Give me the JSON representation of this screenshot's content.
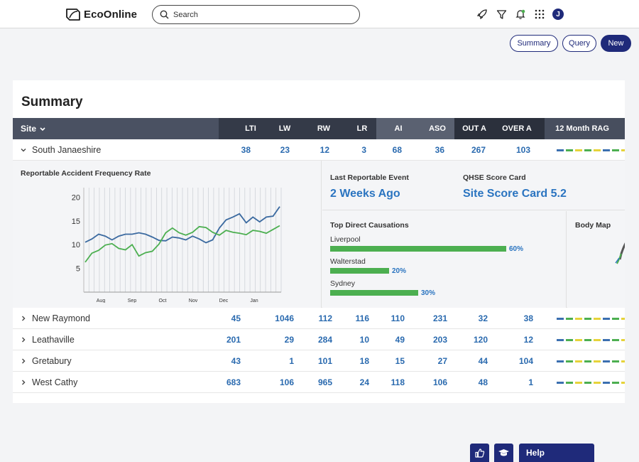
{
  "header": {
    "logo_text": "EcoOnline",
    "search_placeholder": "Search",
    "avatar_initial": "J",
    "icons": [
      "rocket-icon",
      "filter-icon",
      "bell-icon",
      "apps-grid-icon"
    ]
  },
  "actions": {
    "summary": "Summary",
    "query": "Query",
    "new": "New"
  },
  "panel": {
    "title": "Summary",
    "columns": {
      "site": "Site",
      "metrics": [
        "LTI",
        "LW",
        "RW",
        "LR",
        "AI",
        "ASO",
        "OUT A",
        "OVER A"
      ],
      "rag": "12 Month RAG"
    },
    "rows": [
      {
        "name": "South Janaeshire",
        "values": [
          "38",
          "23",
          "12",
          "3",
          "68",
          "36",
          "267",
          "103"
        ],
        "expanded": true
      },
      {
        "name": "New Raymond",
        "values": [
          "45",
          "1046",
          "112",
          "116",
          "110",
          "231",
          "32",
          "38"
        ]
      },
      {
        "name": "Leathaville",
        "values": [
          "201",
          "29",
          "284",
          "10",
          "49",
          "203",
          "120",
          "12"
        ]
      },
      {
        "name": "Gretabury",
        "values": [
          "43",
          "1",
          "101",
          "18",
          "15",
          "27",
          "44",
          "104"
        ]
      },
      {
        "name": "West Cathy",
        "values": [
          "683",
          "106",
          "965",
          "24",
          "118",
          "106",
          "48",
          "1"
        ]
      }
    ],
    "rag_colors": [
      "#3b6fb0",
      "#4caf50",
      "#e6d33a",
      "#4caf50",
      "#e6d33a",
      "#3b6fb0",
      "#4caf50",
      "#e6d33a"
    ]
  },
  "detail": {
    "chart_title": "Reportable Accident Frequency Rate",
    "last_event_label": "Last Reportable Event",
    "last_event_value": "2 Weeks Ago",
    "score_label": "QHSE Score Card",
    "score_value": "Site Score Card 5.2",
    "causations_title": "Top Direct Causations",
    "causations": [
      {
        "name": "Liverpool",
        "pct": "60%",
        "fraction": 0.6
      },
      {
        "name": "Walterstad",
        "pct": "20%",
        "fraction": 0.2
      },
      {
        "name": "Sydney",
        "pct": "30%",
        "fraction": 0.3
      }
    ],
    "body_map_title": "Body Map"
  },
  "chart_data": {
    "type": "line",
    "title": "Reportable Accident Frequency Rate",
    "x_tick_labels": [
      "Aug",
      "Sep",
      "Oct",
      "Nov",
      "Dec",
      "Jan"
    ],
    "y_ticks": [
      5,
      10,
      15,
      20
    ],
    "ylim": [
      0,
      22
    ],
    "grid": true,
    "series": [
      {
        "color": "#3b6aa0",
        "values": [
          10.5,
          11.2,
          12.2,
          11.8,
          11.0,
          11.8,
          12.2,
          12.2,
          12.5,
          12.2,
          11.6,
          10.9,
          10.8,
          11.6,
          11.4,
          11.0,
          11.8,
          11.2,
          10.4,
          11.0,
          13.5,
          15.2,
          15.8,
          16.5,
          14.6,
          15.8,
          14.8,
          15.8,
          16.0,
          18.0
        ]
      },
      {
        "color": "#4caf50",
        "values": [
          6.3,
          8.2,
          8.8,
          9.9,
          10.2,
          9.2,
          8.9,
          10.0,
          7.6,
          8.3,
          8.6,
          10.1,
          12.5,
          13.5,
          12.5,
          12.0,
          12.6,
          13.8,
          13.6,
          12.6,
          12.0,
          13.0,
          12.6,
          12.4,
          12.1,
          13.0,
          12.8,
          12.4,
          13.2,
          14.0
        ]
      }
    ]
  },
  "footer": {
    "help": "Help",
    "icons": [
      "thumbs-up-icon",
      "graduation-cap-icon"
    ]
  }
}
